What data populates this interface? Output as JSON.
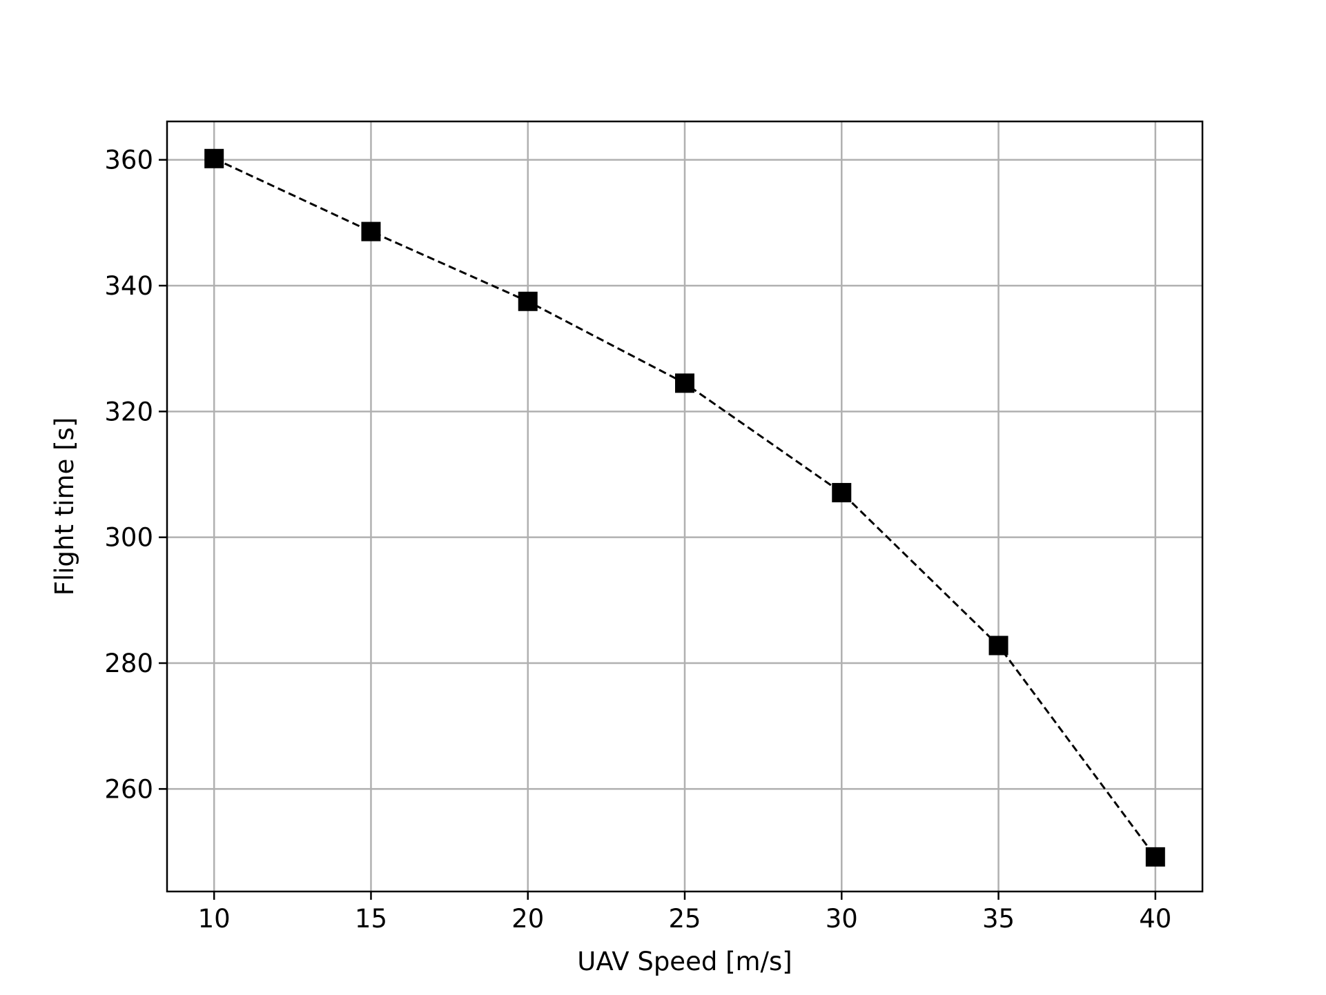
{
  "chart_data": {
    "type": "line",
    "title": "",
    "xlabel": "UAV Speed [m/s]",
    "ylabel": "Flight time [s]",
    "x": [
      10,
      15,
      20,
      25,
      30,
      35,
      40
    ],
    "series": [
      {
        "values": [
          360.2,
          348.6,
          337.5,
          324.5,
          307.1,
          282.8,
          249.2
        ]
      }
    ],
    "xlim": [
      8.5,
      41.5
    ],
    "ylim": [
      243.7,
      366.1
    ],
    "xticks": [
      10,
      15,
      20,
      25,
      30,
      35,
      40
    ],
    "yticks": [
      260,
      280,
      300,
      320,
      340,
      360
    ],
    "grid": true,
    "line_style": "dashed",
    "marker": "square",
    "colors": {
      "line": "#000000",
      "marker": "#000000",
      "grid": "#b0b0b0"
    }
  }
}
